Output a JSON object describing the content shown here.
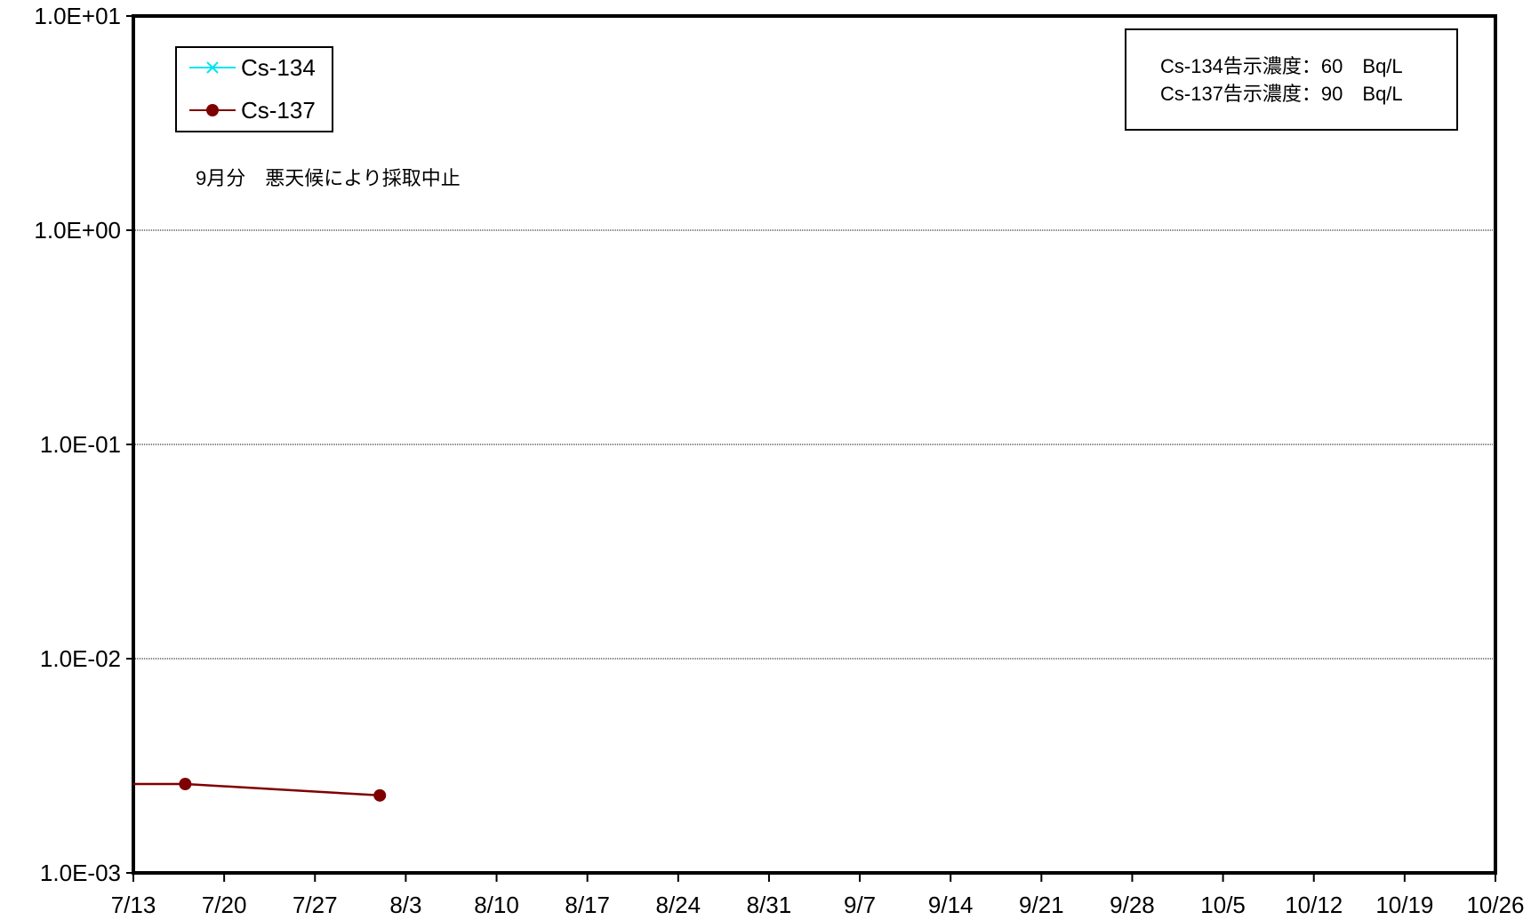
{
  "chart_data": {
    "type": "line",
    "title": "",
    "xlabel": "",
    "ylabel": "",
    "y_scale": "log",
    "ylim": [
      0.001,
      10
    ],
    "y_ticks": [
      "1.0E+01",
      "1.0E+00",
      "1.0E-01",
      "1.0E-02",
      "1.0E-03"
    ],
    "x_ticks": [
      "7/13",
      "7/20",
      "7/27",
      "8/3",
      "8/10",
      "8/17",
      "8/24",
      "8/31",
      "9/7",
      "9/14",
      "9/21",
      "9/28",
      "10/5",
      "10/12",
      "10/19",
      "10/26"
    ],
    "xlim": [
      "7/13",
      "10/26"
    ],
    "grid": "horizontal",
    "legend_position": "top-left",
    "series": [
      {
        "name": "Cs-134",
        "color": "#00e5ee",
        "marker": "x",
        "points": []
      },
      {
        "name": "Cs-137",
        "color": "#7f0000",
        "marker": "circle",
        "points": [
          {
            "x": "7/13",
            "y": 0.0026,
            "marker": false
          },
          {
            "x": "7/17",
            "y": 0.0026
          },
          {
            "x": "8/1",
            "y": 0.0023
          }
        ]
      }
    ],
    "annotations": {
      "note": "9月分　悪天候により採取中止",
      "limits": [
        "Cs-134告示濃度：60　Bq/L",
        "Cs-137告示濃度：90　Bq/L"
      ]
    }
  }
}
